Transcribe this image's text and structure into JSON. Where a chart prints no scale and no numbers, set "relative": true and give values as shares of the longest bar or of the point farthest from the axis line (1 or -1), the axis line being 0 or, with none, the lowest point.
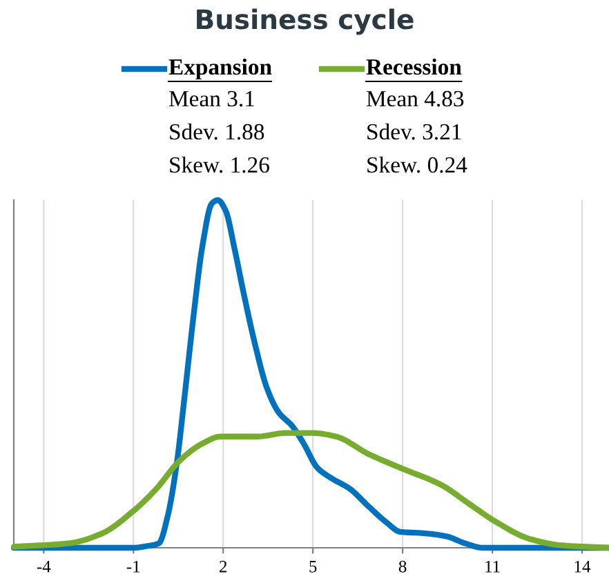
{
  "chart_data": {
    "type": "line",
    "title": "Business cycle",
    "relative": true,
    "xlim": [
      -5,
      14.9
    ],
    "xticks": [
      -4,
      -1,
      2,
      5,
      8,
      11,
      14
    ],
    "grid": "x",
    "legend": "top",
    "marker": "none",
    "line_style": "solid",
    "annotations": [
      "Mean 3.1",
      "Sdev. 1.88",
      "Skew. 1.26",
      "Mean 4.83",
      "Sdev. 3.21",
      "Skew. 0.24"
    ],
    "series": [
      {
        "name": "Expansion",
        "color": "#0072bd",
        "x": [
          -5,
          -1,
          -0.54,
          -0.15,
          0.15,
          0.46,
          0.69,
          1.0,
          1.31,
          1.62,
          1.82,
          2.08,
          2.38,
          2.69,
          3.08,
          3.46,
          3.85,
          4.31,
          4.69,
          5.15,
          5.62,
          6.23,
          6.85,
          7.46,
          7.92,
          8.69,
          9.46,
          10.08,
          10.69,
          14.9
        ],
        "values": [
          0,
          0,
          0.005,
          0.013,
          0.093,
          0.25,
          0.42,
          0.66,
          0.87,
          0.99,
          1,
          0.97,
          0.86,
          0.73,
          0.58,
          0.46,
          0.39,
          0.35,
          0.3,
          0.23,
          0.2,
          0.17,
          0.12,
          0.073,
          0.046,
          0.042,
          0.033,
          0.013,
          0,
          0
        ]
      },
      {
        "name": "Recession",
        "color": "#77ac30",
        "x": [
          -5,
          -3.15,
          -2.08,
          -1,
          -0.23,
          0.54,
          1.31,
          1.92,
          3.15,
          4.08,
          5.0,
          5.77,
          6.85,
          7.92,
          9.31,
          10.23,
          11.15,
          12.23,
          13.31,
          14.9
        ],
        "values": [
          0.003,
          0.013,
          0.04,
          0.106,
          0.17,
          0.25,
          0.3,
          0.32,
          0.32,
          0.33,
          0.33,
          0.32,
          0.27,
          0.23,
          0.18,
          0.126,
          0.073,
          0.026,
          0.007,
          0
        ]
      }
    ]
  }
}
